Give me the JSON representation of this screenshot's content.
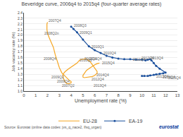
{
  "chart_data": {
    "type": "line",
    "title": "Beveridge curve, 2006q4 to 2015q4 (four-quarter average rates)",
    "xlabel": "Unemployment rate (%)",
    "ylabel": "Job vacancy rate (%)",
    "xlim": [
      0,
      13
    ],
    "ylim": [
      1.0,
      2.4
    ],
    "xticks": [
      0,
      1,
      2,
      3,
      4,
      5,
      6,
      7,
      8,
      9,
      10,
      11,
      12,
      13
    ],
    "yticks": [
      {
        "value": 1.0,
        "label": "1.0"
      },
      1.1,
      1.2,
      1.3,
      1.4,
      1.5,
      1.6,
      1.7,
      1.8,
      1.9,
      {
        "value": 2.0,
        "label": "2.0"
      },
      2.1,
      2.2,
      2.3,
      2.4
    ],
    "grid": "y",
    "legend": "bottom",
    "series": [
      {
        "name": "EU-28",
        "color": "#f5a623",
        "marker": "none",
        "line_style": "solid",
        "x": [
          2.0,
          1.95,
          1.95,
          2.0,
          2.15,
          2.3,
          2.5,
          2.65,
          2.8,
          3.0,
          3.2,
          3.5,
          3.8,
          4.0,
          4.0,
          3.8,
          3.6,
          3.5,
          3.4,
          3.3,
          3.3,
          3.5,
          3.8,
          4.0,
          4.2,
          4.5,
          4.7,
          4.9,
          5.1,
          5.2,
          5.3,
          5.4,
          5.5,
          5.6,
          5.7,
          5.8,
          5.9,
          6.0,
          6.1,
          6.2,
          6.2,
          6.0,
          5.8,
          5.5,
          5.3,
          5.1,
          5.0,
          5.0,
          5.1,
          5.2,
          5.3,
          5.5,
          5.7,
          5.9,
          6.0,
          6.2,
          6.4
        ],
        "values": [
          2.23,
          2.2,
          2.1,
          2.03,
          1.95,
          1.88,
          1.78,
          1.65,
          1.55,
          1.42,
          1.33,
          1.26,
          1.2,
          1.17,
          1.15,
          1.13,
          1.14,
          1.16,
          1.2,
          1.25,
          1.3,
          1.35,
          1.4,
          1.43,
          1.45,
          1.5,
          1.55,
          1.57,
          1.57,
          1.58,
          1.57,
          1.56,
          1.55,
          1.53,
          1.5,
          1.47,
          1.43,
          1.4,
          1.37,
          1.35,
          1.32,
          1.28,
          1.26,
          1.25,
          1.24,
          1.24,
          1.25,
          1.28,
          1.31,
          1.34,
          1.37,
          1.4,
          1.43,
          1.45,
          1.47,
          1.49,
          1.5
        ]
      },
      {
        "name": "EA-19",
        "color": "#1a4f9c",
        "marker": "dot",
        "line_style": "solid",
        "x": [
          4.0,
          4.2,
          4.5,
          5.0,
          5.5,
          6.0,
          6.5,
          7.0,
          7.5,
          8.0,
          8.5,
          9.0,
          9.5,
          10.0,
          10.3,
          10.5,
          10.7,
          10.8,
          11.0,
          11.2,
          11.5,
          12.0,
          11.8,
          11.5,
          11.2,
          11.0,
          10.7,
          10.5,
          10.2,
          10.0
        ],
        "values": [
          2.15,
          2.11,
          2.05,
          1.92,
          1.8,
          1.73,
          1.68,
          1.63,
          1.6,
          1.58,
          1.57,
          1.57,
          1.56,
          1.56,
          1.55,
          1.56,
          1.57,
          1.55,
          1.5,
          1.45,
          1.4,
          1.33,
          1.32,
          1.31,
          1.3,
          1.29,
          1.28,
          1.27,
          1.27,
          1.27
        ]
      }
    ],
    "annotations": [
      {
        "text": "2007Q4",
        "x": 1.95,
        "y": 2.26
      },
      {
        "text": "2008Q2n",
        "x": 1.6,
        "y": 2.03
      },
      {
        "text": "2008Q4",
        "x": 1.57,
        "y": 1.58
      },
      {
        "text": "2009Q2",
        "x": 2.2,
        "y": 1.25
      },
      {
        "text": "2009Q4",
        "x": 2.7,
        "y": 1.18
      },
      {
        "text": "2007Q2",
        "x": 3.1,
        "y": 1.1
      },
      {
        "text": "2010Q1",
        "x": 4.6,
        "y": 1.55
      },
      {
        "text": "2011Q4",
        "x": 5.0,
        "y": 1.58
      },
      {
        "text": "2011Q4",
        "x": 5.4,
        "y": 1.58
      },
      {
        "text": "2012Q4",
        "x": 5.6,
        "y": 1.22
      },
      {
        "text": "2013Q4",
        "x": 5.8,
        "y": 1.1
      },
      {
        "text": "2014Q4",
        "x": 6.0,
        "y": 1.29
      },
      {
        "text": "2015Q4",
        "x": 6.5,
        "y": 1.5
      },
      {
        "text": "2008Q3",
        "x": 4.1,
        "y": 2.17
      },
      {
        "text": "2009Q1",
        "x": 4.6,
        "y": 2.05
      },
      {
        "text": "2010Q1",
        "x": 5.6,
        "y": 1.8
      },
      {
        "text": "2010Q4",
        "x": 6.6,
        "y": 1.68
      },
      {
        "text": "2011Q4",
        "x": 9.1,
        "y": 1.57
      },
      {
        "text": "2012Q4",
        "x": 9.85,
        "y": 1.59
      },
      {
        "text": "2013Q4",
        "x": 10.6,
        "y": 1.59
      },
      {
        "text": "2013Q4",
        "x": 11.1,
        "y": 1.26
      },
      {
        "text": "2014Q4",
        "x": 11.6,
        "y": 1.25
      },
      {
        "text": "2015Q4",
        "x": 12.1,
        "y": 1.24
      }
    ],
    "footnotes": [
      "Source: Eurostat (online data codes: jvs_q_nace2, lfsq_urgan)",
      "eurostat"
    ]
  }
}
